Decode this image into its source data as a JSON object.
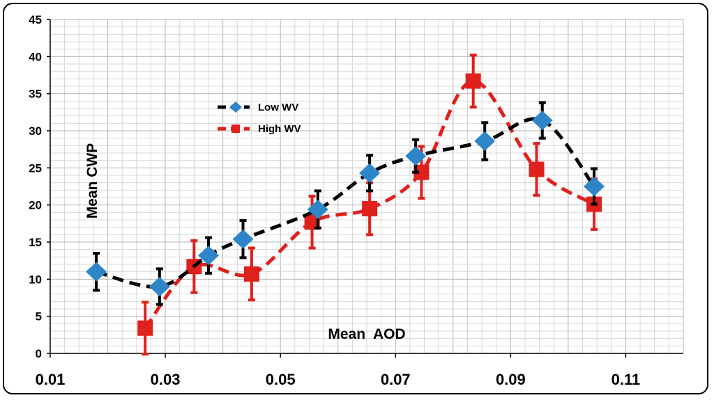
{
  "chart_data": {
    "type": "scatter",
    "title": "",
    "xlabel": "Mean  AOD",
    "ylabel": "Mean CWP",
    "xlim": [
      0.01,
      0.12
    ],
    "ylim": [
      0,
      45
    ],
    "xticks": [
      "0.01",
      "0.03",
      "0.05",
      "0.07",
      "0.09",
      "0.11"
    ],
    "xtick_values": [
      0.01,
      0.03,
      0.05,
      0.07,
      0.09,
      0.11
    ],
    "yticks": [
      "0",
      "5",
      "10",
      "15",
      "20",
      "25",
      "30",
      "35",
      "40",
      "45"
    ],
    "ytick_values": [
      0,
      5,
      10,
      15,
      20,
      25,
      30,
      35,
      40,
      45
    ],
    "grid": true,
    "legend_position": "upper-left",
    "series": [
      {
        "name": "Low WV",
        "color": "#000000",
        "marker_color": "#2E86C8",
        "errorbar_color": "#000000",
        "marker": "diamond",
        "line_style": "dashed",
        "x": [
          0.018,
          0.029,
          0.0375,
          0.0435,
          0.0565,
          0.0655,
          0.0735,
          0.0855,
          0.0955,
          0.1045
        ],
        "y": [
          11,
          9,
          13.2,
          15.4,
          19.4,
          24.3,
          26.6,
          28.6,
          31.4,
          22.5
        ],
        "error": [
          2.5,
          2.4,
          2.4,
          2.5,
          2.5,
          2.4,
          2.2,
          2.5,
          2.4,
          2.4
        ]
      },
      {
        "name": "High WV",
        "color": "#E0201C",
        "marker_color": "#E0201C",
        "errorbar_color": "#E0201C",
        "marker": "square",
        "line_style": "dashed",
        "x": [
          0.0265,
          0.035,
          0.045,
          0.0555,
          0.0655,
          0.0745,
          0.0835,
          0.0945,
          0.1045
        ],
        "y": [
          3.4,
          11.7,
          10.7,
          17.7,
          19.5,
          24.4,
          36.7,
          24.8,
          20.1
        ],
        "error": [
          3.5,
          3.5,
          3.5,
          3.5,
          3.5,
          3.5,
          3.5,
          3.5,
          3.4
        ]
      }
    ]
  }
}
